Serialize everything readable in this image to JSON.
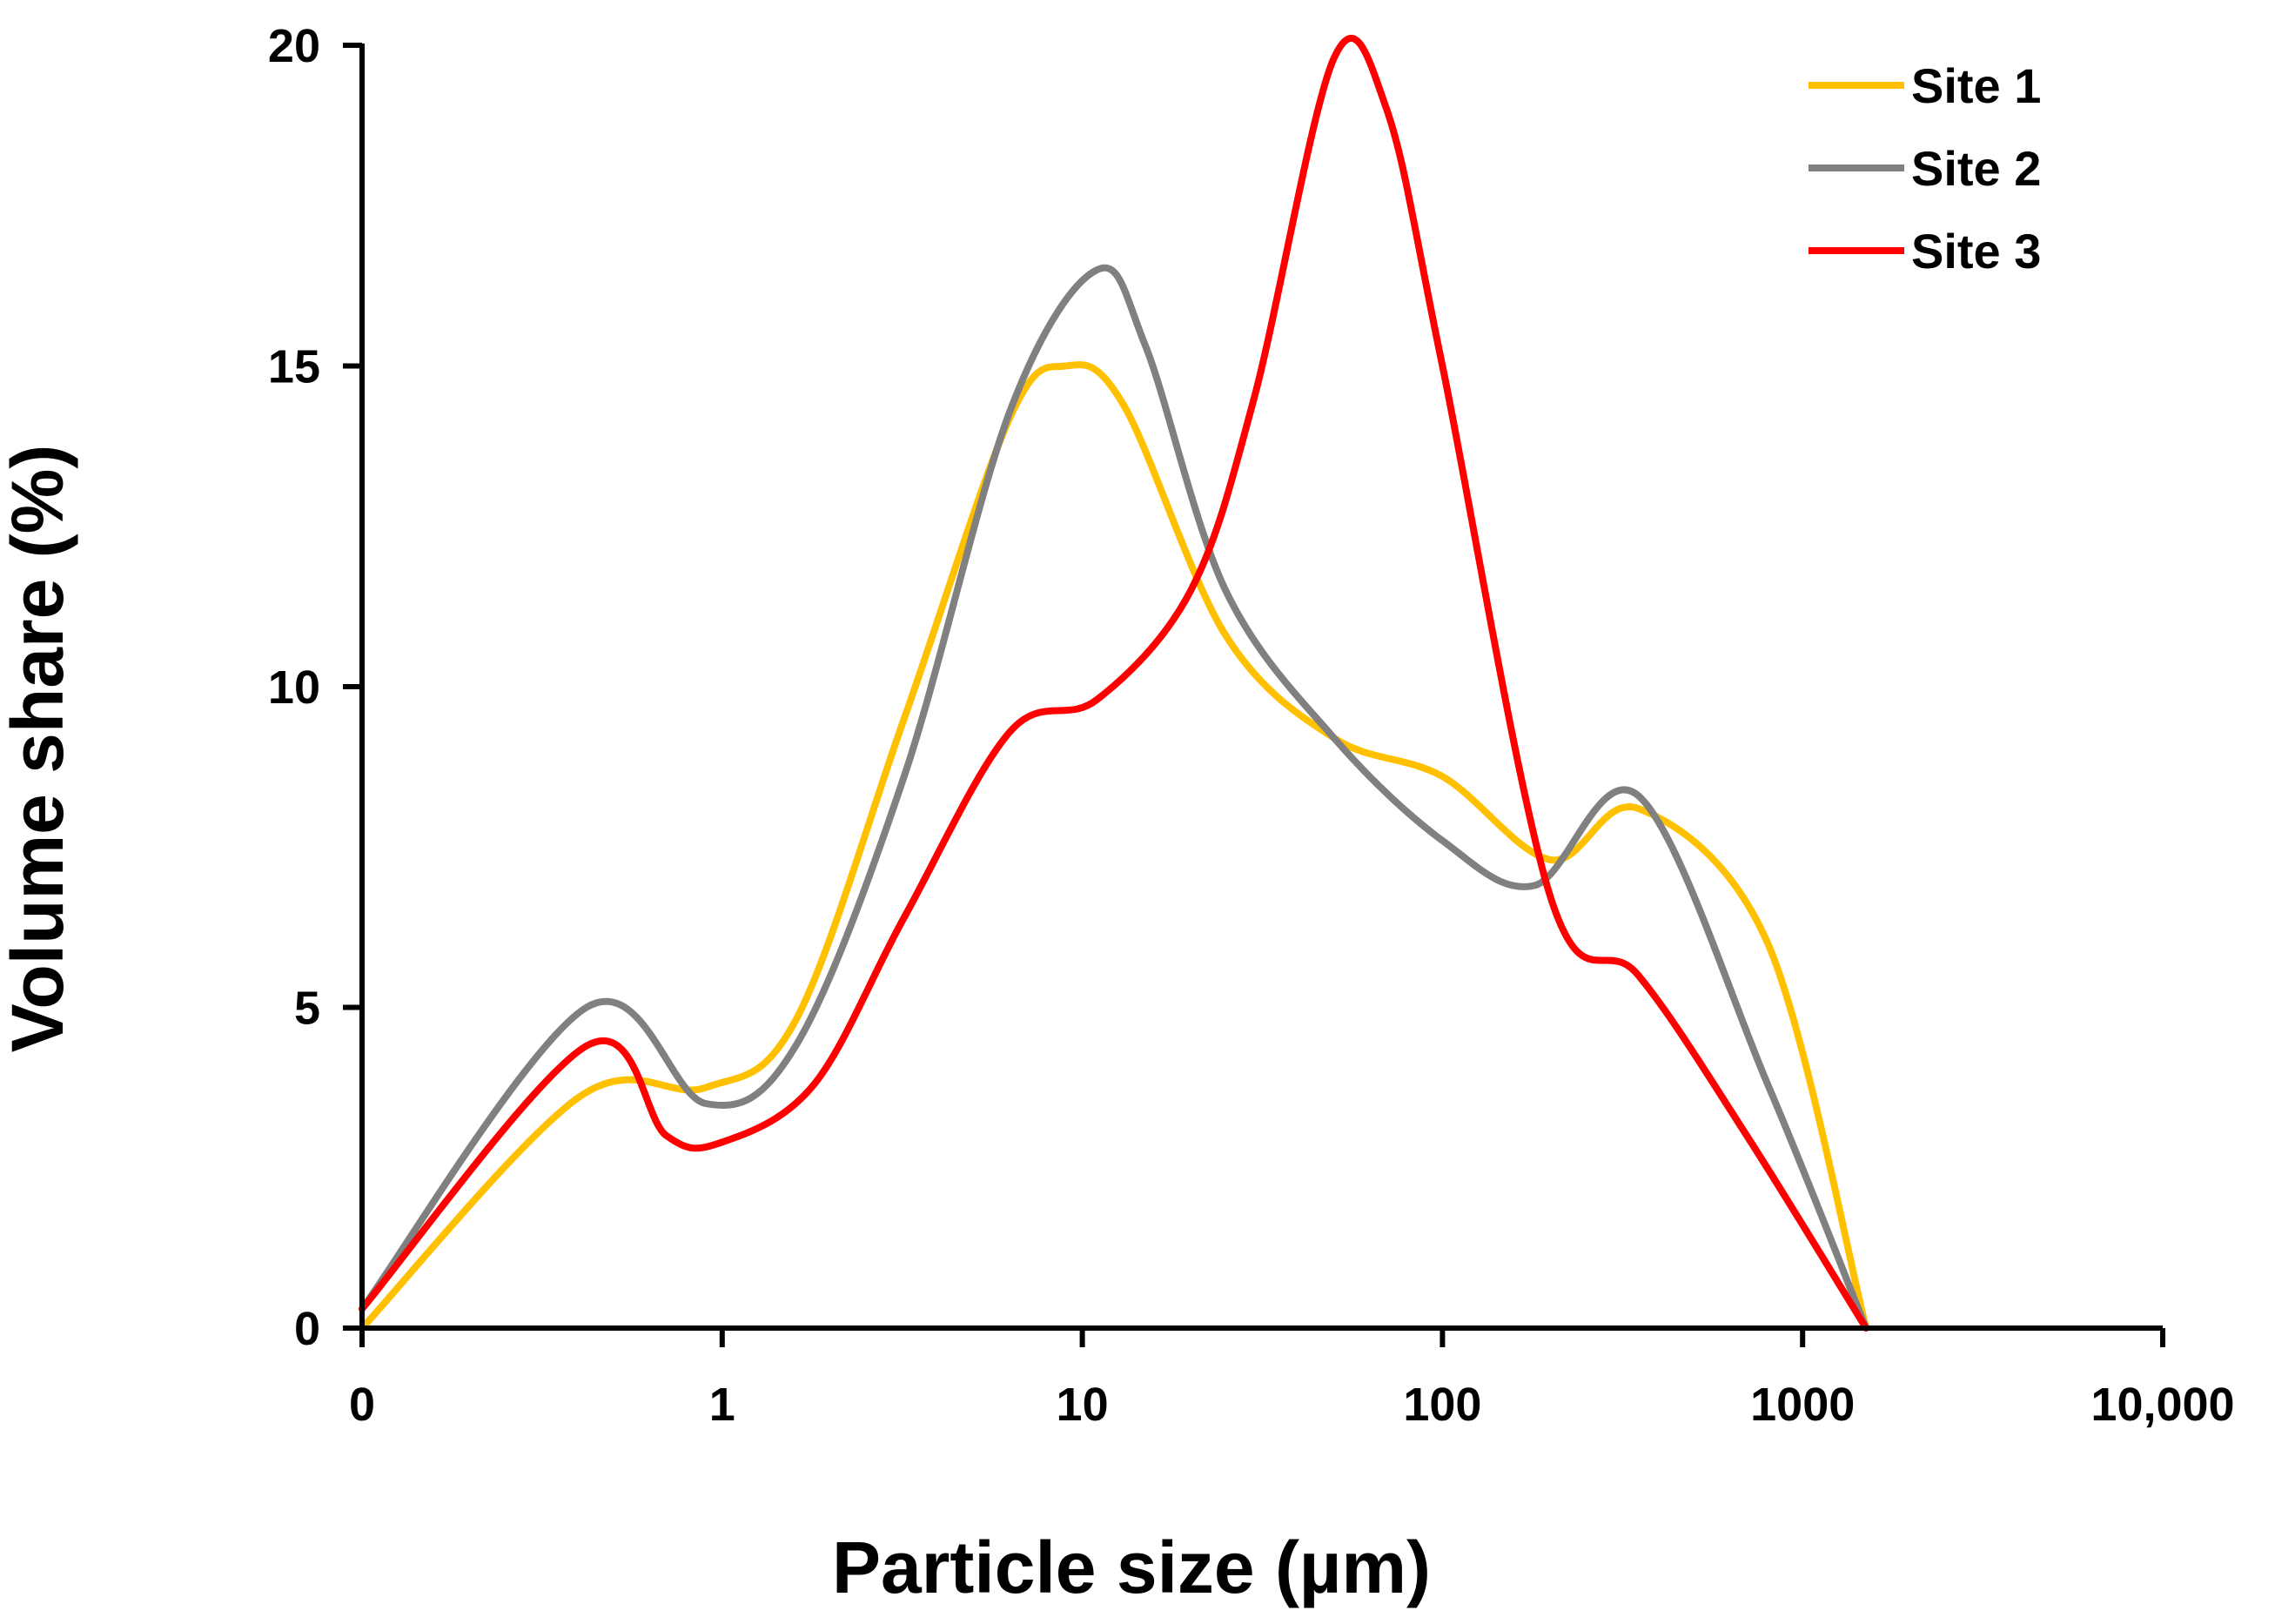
{
  "chart_data": {
    "type": "line",
    "title": "",
    "xlabel": "Particle size (µm)",
    "ylabel": "Volume share (%)",
    "x_scale": "log10",
    "x_ticks": [
      {
        "label": "0",
        "value": 0.1
      },
      {
        "label": "1",
        "value": 1
      },
      {
        "label": "10",
        "value": 10
      },
      {
        "label": "100",
        "value": 100
      },
      {
        "label": "1000",
        "value": 1000
      },
      {
        "label": "10,000",
        "value": 10000
      }
    ],
    "y_ticks": [
      {
        "label": "0",
        "value": 0
      },
      {
        "label": "5",
        "value": 5
      },
      {
        "label": "10",
        "value": 10
      },
      {
        "label": "15",
        "value": 15
      },
      {
        "label": "20",
        "value": 20
      }
    ],
    "xlim": [
      0.1,
      10000
    ],
    "ylim": [
      0,
      20
    ],
    "grid": false,
    "legend_position": "top-right",
    "series": [
      {
        "name": "Site 1",
        "color": "#FFC000",
        "x": [
          0.1,
          0.4,
          0.9,
          1.6,
          3.2,
          6.3,
          9,
          13,
          25,
          50,
          100,
          200,
          350,
          800,
          1500
        ],
        "values": [
          0,
          3.6,
          3.75,
          4.8,
          9.5,
          14.2,
          15,
          14.4,
          10.8,
          9.2,
          8.6,
          7.3,
          8.1,
          6.0,
          0
        ]
      },
      {
        "name": "Site 2",
        "color": "#808080",
        "x": [
          0.1,
          0.42,
          0.9,
          1.6,
          3.2,
          6.3,
          11,
          15,
          25,
          50,
          100,
          180,
          350,
          800,
          1500
        ],
        "values": [
          0.3,
          5.0,
          3.5,
          4.4,
          8.6,
          14.3,
          16.5,
          15.3,
          11.5,
          9.2,
          7.6,
          6.9,
          8.3,
          3.8,
          0
        ]
      },
      {
        "name": "Site 3",
        "color": "#FF0000",
        "x": [
          0.1,
          0.42,
          0.7,
          1.0,
          1.8,
          3.2,
          6.3,
          11,
          20,
          30,
          50,
          70,
          100,
          200,
          350,
          700,
          1500
        ],
        "values": [
          0.3,
          4.4,
          3.0,
          2.9,
          3.8,
          6.4,
          9.3,
          9.8,
          11.5,
          14.5,
          19.8,
          19.0,
          15.0,
          6.7,
          5.5,
          3.0,
          0
        ]
      }
    ]
  }
}
